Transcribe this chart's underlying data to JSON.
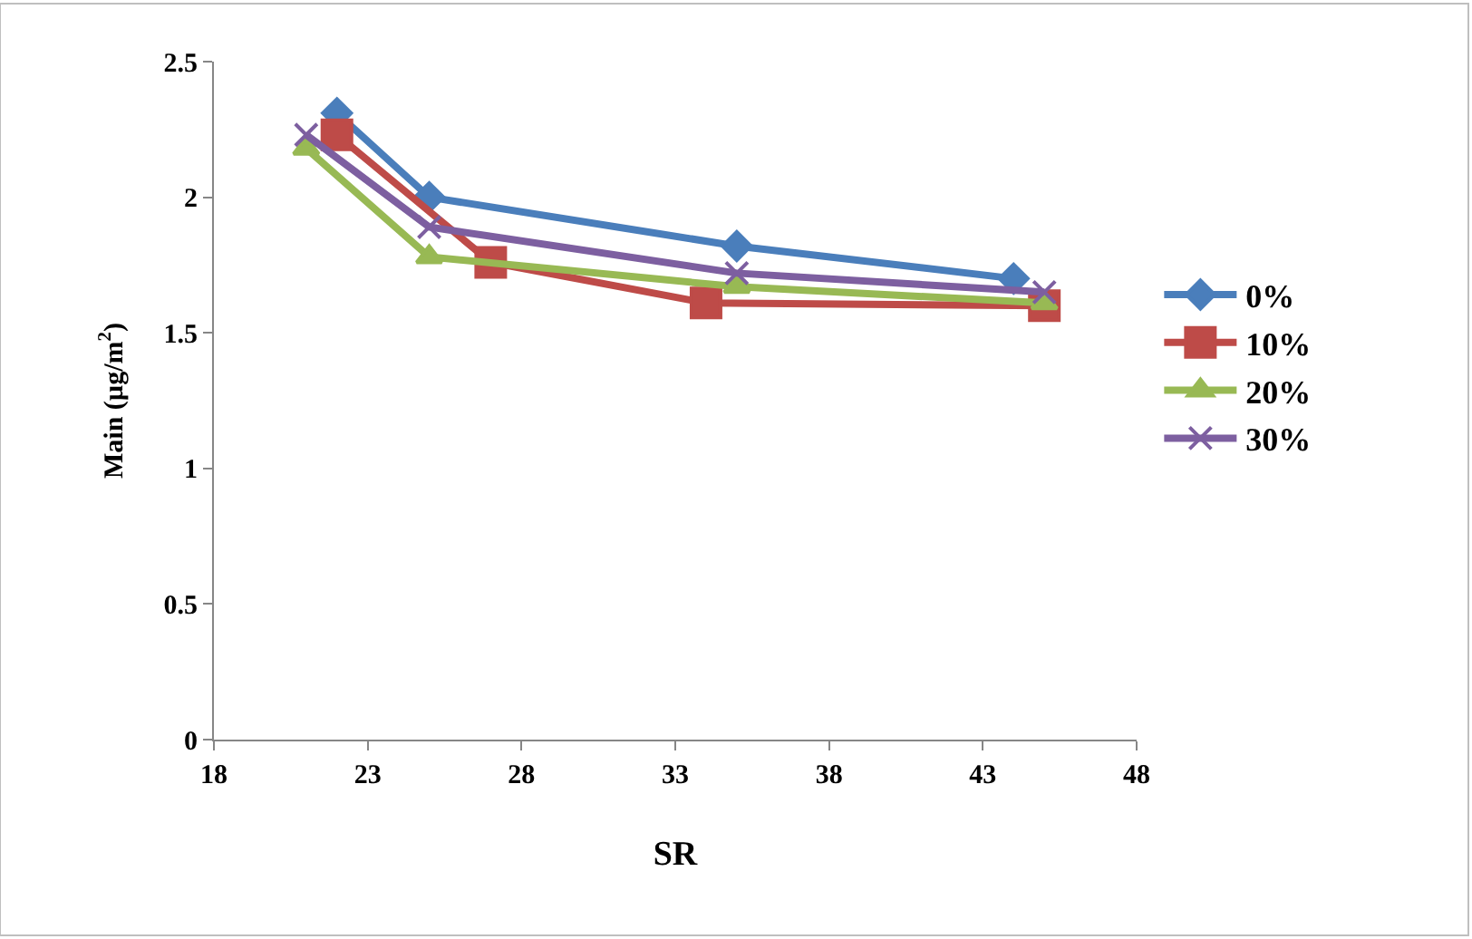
{
  "chart_data": {
    "type": "line",
    "xlabel": "SR",
    "ylabel": "Main (µg/m$^{2}$)",
    "xlim": [
      18,
      48
    ],
    "xticks": [
      18,
      23,
      28,
      33,
      38,
      43,
      48
    ],
    "ylim": [
      0,
      2.5
    ],
    "yticks": [
      0,
      0.5,
      1,
      1.5,
      2,
      2.5
    ],
    "legend": "right",
    "series": [
      {
        "name": "0%",
        "color": "#4a7ebb",
        "marker": "diamond",
        "x": [
          22,
          25,
          35,
          44
        ],
        "values": [
          2.31,
          2.0,
          1.82,
          1.7
        ]
      },
      {
        "name": "10%",
        "color": "#be4b48",
        "marker": "square",
        "x": [
          22,
          27,
          34,
          45
        ],
        "values": [
          2.23,
          1.76,
          1.61,
          1.6
        ]
      },
      {
        "name": "20%",
        "color": "#98b954",
        "marker": "triangle",
        "x": [
          21,
          25,
          35,
          45
        ],
        "values": [
          2.18,
          1.78,
          1.67,
          1.61
        ]
      },
      {
        "name": "30%",
        "color": "#7d5fa0",
        "marker": "cross",
        "x": [
          21,
          25,
          35,
          45
        ],
        "values": [
          2.23,
          1.89,
          1.72,
          1.65
        ]
      }
    ]
  }
}
